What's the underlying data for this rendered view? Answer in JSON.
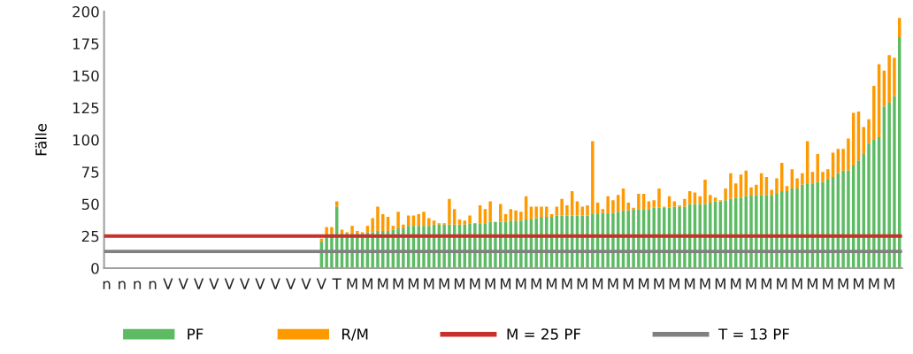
{
  "chart_data": {
    "type": "bar",
    "stacked": true,
    "ylabel": "Fälle",
    "ylim": [
      0,
      200
    ],
    "yticks": [
      0,
      25,
      50,
      75,
      100,
      125,
      150,
      175,
      200
    ],
    "grid": false,
    "legend": "bottom",
    "categories": [
      "n",
      null,
      null,
      "n",
      null,
      null,
      "n",
      null,
      null,
      "n",
      null,
      null,
      "V",
      null,
      null,
      "V",
      null,
      null,
      "V",
      null,
      null,
      "V",
      null,
      null,
      "V",
      null,
      null,
      "V",
      null,
      null,
      "V",
      null,
      null,
      "V",
      null,
      null,
      "V",
      null,
      null,
      "V",
      null,
      null,
      "V",
      null,
      null,
      "T",
      null,
      null,
      "M",
      null,
      null,
      "M",
      null,
      null,
      "M",
      null,
      null,
      "M",
      null,
      null,
      "M",
      null,
      null,
      "M",
      null,
      null,
      "M",
      null,
      null,
      "M",
      null,
      null,
      "M",
      null,
      null,
      "M",
      null,
      null,
      "M",
      null,
      null,
      "M",
      null,
      null,
      "M",
      null,
      null,
      "M",
      null,
      null,
      "M",
      null,
      null,
      "M",
      null,
      null,
      "M",
      null,
      null,
      "M",
      null,
      null,
      "M",
      null,
      null,
      "M",
      null,
      null,
      "M",
      null,
      null,
      "M",
      null,
      null,
      "M",
      null,
      null,
      "M",
      null,
      null,
      "M",
      null,
      null,
      "M",
      null,
      null,
      "M",
      null,
      null,
      "M",
      null,
      null,
      "M",
      null,
      null,
      "M",
      null,
      null,
      "M",
      null,
      null,
      "M",
      null,
      null,
      "M",
      null,
      null,
      "M",
      null,
      null,
      "M",
      null,
      null,
      "M",
      null,
      null
    ],
    "series": [
      {
        "name": "PF",
        "color": "#5dbb63",
        "values": [
          null,
          null,
          null,
          null,
          null,
          null,
          null,
          null,
          null,
          null,
          null,
          null,
          null,
          null,
          null,
          null,
          null,
          null,
          null,
          null,
          null,
          null,
          null,
          null,
          null,
          null,
          null,
          null,
          null,
          null,
          null,
          null,
          null,
          null,
          null,
          null,
          null,
          null,
          null,
          null,
          null,
          null,
          21,
          24,
          27,
          48,
          27,
          27,
          27,
          27,
          27,
          28,
          28,
          29,
          29,
          29,
          30,
          31,
          31,
          33,
          33,
          33,
          33,
          33,
          34,
          34,
          34,
          34,
          34,
          34,
          34,
          35,
          35,
          35,
          35,
          36,
          36,
          36,
          36,
          37,
          37,
          37,
          38,
          38,
          39,
          40,
          40,
          40,
          41,
          41,
          41,
          41,
          41,
          41,
          41,
          42,
          42,
          43,
          43,
          43,
          44,
          45,
          45,
          46,
          46,
          46,
          46,
          47,
          47,
          47,
          47,
          48,
          48,
          48,
          50,
          50,
          50,
          50,
          51,
          52,
          52,
          53,
          54,
          55,
          55,
          56,
          57,
          57,
          57,
          57,
          57,
          58,
          60,
          60,
          62,
          62,
          65,
          66,
          66,
          67,
          67,
          69,
          71,
          74,
          76,
          76,
          80,
          84,
          89,
          97,
          100,
          102,
          126,
          129,
          134,
          180
        ]
      },
      {
        "name": "R/M",
        "color": "#ff9900",
        "values": [
          null,
          null,
          null,
          null,
          null,
          null,
          null,
          null,
          null,
          null,
          null,
          null,
          null,
          null,
          null,
          null,
          null,
          null,
          null,
          null,
          null,
          null,
          null,
          null,
          null,
          null,
          null,
          null,
          null,
          null,
          null,
          null,
          null,
          null,
          null,
          null,
          null,
          null,
          null,
          null,
          null,
          null,
          2,
          8,
          5,
          4,
          3,
          1,
          6,
          2,
          1,
          5,
          11,
          19,
          13,
          11,
          3,
          13,
          3,
          8,
          8,
          9,
          11,
          6,
          3,
          1,
          1,
          20,
          12,
          4,
          3,
          6,
          0,
          14,
          11,
          16,
          0,
          14,
          6,
          9,
          8,
          7,
          18,
          10,
          9,
          8,
          8,
          2,
          7,
          13,
          8,
          19,
          11,
          7,
          8,
          57,
          9,
          3,
          13,
          10,
          13,
          17,
          6,
          1,
          12,
          12,
          6,
          6,
          15,
          1,
          9,
          4,
          1,
          6,
          10,
          9,
          6,
          19,
          6,
          3,
          1,
          9,
          20,
          11,
          18,
          20,
          6,
          8,
          17,
          14,
          4,
          12,
          22,
          4,
          15,
          8,
          9,
          33,
          9,
          22,
          8,
          8,
          19,
          19,
          17,
          25,
          41,
          38,
          21,
          19,
          42,
          57,
          28,
          37,
          30,
          15
        ]
      }
    ],
    "ref_lines": [
      {
        "axis": "y",
        "value": 25,
        "label": "M = 25 PF",
        "color": "#c9302c",
        "line_style": "solid"
      },
      {
        "axis": "y",
        "value": 13,
        "label": "T = 13 PF",
        "color": "#808080",
        "line_style": "solid"
      }
    ]
  }
}
